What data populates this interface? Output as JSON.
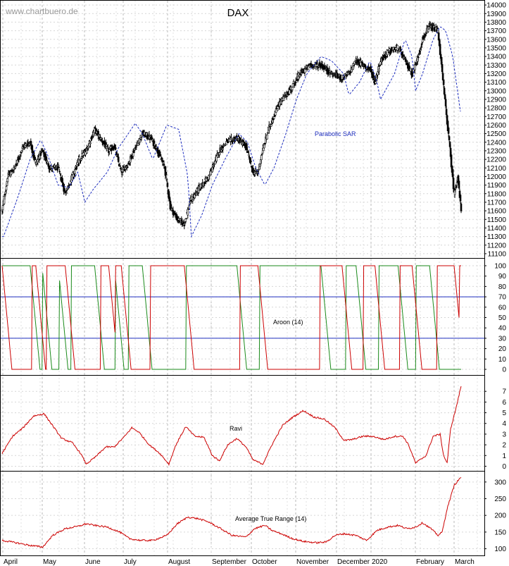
{
  "watermark": "www.chartbuero.de",
  "chart_data": [
    {
      "type": "candlestick",
      "title": "DAX",
      "y_ticks": [
        11100,
        11200,
        11300,
        11400,
        11500,
        11600,
        11700,
        11800,
        11900,
        12000,
        12100,
        12200,
        12300,
        12400,
        12500,
        12600,
        12700,
        12800,
        12900,
        13000,
        13100,
        13200,
        13300,
        13400,
        13500,
        13600,
        13700,
        13800,
        13900,
        14000
      ],
      "ylim": [
        11050,
        14050
      ],
      "x_months": [
        "April",
        "May",
        "June",
        "July",
        "August",
        "September",
        "October",
        "November",
        "December",
        "2020",
        "February",
        "March"
      ],
      "close_anchors": [
        [
          0,
          11600
        ],
        [
          8,
          12000
        ],
        [
          18,
          12100
        ],
        [
          30,
          12350
        ],
        [
          40,
          12400
        ],
        [
          48,
          12150
        ],
        [
          57,
          12300
        ],
        [
          68,
          12100
        ],
        [
          80,
          12100
        ],
        [
          90,
          11800
        ],
        [
          100,
          12000
        ],
        [
          110,
          12200
        ],
        [
          120,
          12300
        ],
        [
          132,
          12550
        ],
        [
          140,
          12450
        ],
        [
          152,
          12300
        ],
        [
          160,
          12350
        ],
        [
          170,
          12050
        ],
        [
          180,
          12150
        ],
        [
          188,
          12300
        ],
        [
          200,
          12500
        ],
        [
          212,
          12450
        ],
        [
          222,
          12300
        ],
        [
          232,
          12100
        ],
        [
          240,
          11650
        ],
        [
          250,
          11500
        ],
        [
          260,
          11450
        ],
        [
          268,
          11700
        ],
        [
          280,
          11850
        ],
        [
          295,
          12000
        ],
        [
          310,
          12300
        ],
        [
          320,
          12400
        ],
        [
          335,
          12450
        ],
        [
          348,
          12350
        ],
        [
          358,
          12050
        ],
        [
          365,
          12050
        ],
        [
          370,
          12250
        ],
        [
          380,
          12550
        ],
        [
          395,
          12850
        ],
        [
          410,
          13000
        ],
        [
          425,
          13200
        ],
        [
          440,
          13300
        ],
        [
          455,
          13300
        ],
        [
          470,
          13200
        ],
        [
          485,
          13150
        ],
        [
          495,
          13200
        ],
        [
          505,
          13350
        ],
        [
          515,
          13300
        ],
        [
          525,
          13250
        ],
        [
          532,
          13100
        ],
        [
          540,
          13350
        ],
        [
          550,
          13450
        ],
        [
          565,
          13500
        ],
        [
          575,
          13350
        ],
        [
          585,
          13200
        ],
        [
          592,
          13350
        ],
        [
          600,
          13600
        ],
        [
          610,
          13750
        ],
        [
          622,
          13700
        ],
        [
          628,
          13200
        ],
        [
          633,
          12800
        ],
        [
          638,
          12400
        ],
        [
          645,
          11800
        ],
        [
          650,
          12000
        ],
        [
          655,
          11600
        ]
      ],
      "psar_anchors": [
        [
          2,
          11300
        ],
        [
          20,
          11700
        ],
        [
          40,
          12200
        ],
        [
          55,
          12430
        ],
        [
          65,
          12250
        ],
        [
          80,
          11900
        ],
        [
          95,
          11870
        ],
        [
          108,
          12050
        ],
        [
          118,
          11700
        ],
        [
          130,
          11850
        ],
        [
          150,
          12050
        ],
        [
          165,
          12320
        ],
        [
          190,
          12620
        ],
        [
          200,
          12500
        ],
        [
          215,
          12200
        ],
        [
          235,
          12600
        ],
        [
          252,
          12550
        ],
        [
          265,
          12000
        ],
        [
          270,
          11300
        ],
        [
          285,
          11550
        ],
        [
          300,
          11900
        ],
        [
          318,
          12200
        ],
        [
          338,
          12500
        ],
        [
          350,
          12400
        ],
        [
          362,
          12100
        ],
        [
          375,
          11900
        ],
        [
          388,
          12100
        ],
        [
          405,
          12500
        ],
        [
          420,
          12900
        ],
        [
          435,
          13200
        ],
        [
          455,
          13400
        ],
        [
          470,
          13350
        ],
        [
          487,
          13200
        ],
        [
          495,
          12950
        ],
        [
          510,
          13100
        ],
        [
          525,
          13350
        ],
        [
          535,
          13100
        ],
        [
          540,
          12900
        ],
        [
          560,
          13200
        ],
        [
          575,
          13600
        ],
        [
          585,
          13400
        ],
        [
          590,
          13000
        ],
        [
          600,
          13200
        ],
        [
          615,
          13600
        ],
        [
          625,
          13750
        ],
        [
          633,
          13700
        ],
        [
          643,
          13400
        ],
        [
          655,
          12700
        ]
      ],
      "annotation": "Parabolic SAR",
      "series": [
        {
          "name": "Parabolic SAR",
          "color": "#1f2fbf"
        }
      ]
    },
    {
      "type": "line",
      "label": "Aroon (14)",
      "y_ticks": [
        0,
        10,
        20,
        30,
        40,
        50,
        60,
        70,
        80,
        90,
        100
      ],
      "ylim": [
        0,
        100
      ],
      "reference_lines": [
        30,
        70
      ],
      "up_series_color": "#1a8a1a",
      "down_series_color": "#cc0000"
    },
    {
      "type": "line",
      "label": "Ravi",
      "y_ticks": [
        0,
        1,
        2,
        3,
        4,
        5,
        6,
        7
      ],
      "ylim": [
        -0.3,
        8.2
      ],
      "color": "#cc0000",
      "values_anchors": [
        [
          0,
          1.2
        ],
        [
          15,
          2.8
        ],
        [
          30,
          3.6
        ],
        [
          45,
          4.7
        ],
        [
          60,
          4.9
        ],
        [
          72,
          3.8
        ],
        [
          85,
          2.6
        ],
        [
          100,
          2.2
        ],
        [
          112,
          1.2
        ],
        [
          120,
          0.2
        ],
        [
          132,
          0.8
        ],
        [
          148,
          1.8
        ],
        [
          160,
          1.8
        ],
        [
          175,
          2.8
        ],
        [
          185,
          3.6
        ],
        [
          195,
          3.2
        ],
        [
          210,
          2.0
        ],
        [
          225,
          1.2
        ],
        [
          238,
          0.2
        ],
        [
          248,
          2.0
        ],
        [
          262,
          3.7
        ],
        [
          275,
          2.8
        ],
        [
          288,
          2.7
        ],
        [
          300,
          1.0
        ],
        [
          310,
          0.5
        ],
        [
          322,
          2.0
        ],
        [
          335,
          2.6
        ],
        [
          348,
          1.8
        ],
        [
          358,
          0.6
        ],
        [
          372,
          0.2
        ],
        [
          385,
          2.0
        ],
        [
          400,
          3.8
        ],
        [
          415,
          4.6
        ],
        [
          430,
          5.2
        ],
        [
          445,
          4.6
        ],
        [
          460,
          4.4
        ],
        [
          475,
          3.6
        ],
        [
          488,
          2.4
        ],
        [
          500,
          2.5
        ],
        [
          515,
          2.8
        ],
        [
          528,
          2.8
        ],
        [
          545,
          2.5
        ],
        [
          560,
          2.8
        ],
        [
          572,
          2.8
        ],
        [
          580,
          2.0
        ],
        [
          590,
          0.3
        ],
        [
          605,
          1.0
        ],
        [
          615,
          2.8
        ],
        [
          625,
          3.0
        ],
        [
          630,
          1.0
        ],
        [
          635,
          0.3
        ],
        [
          640,
          3.5
        ],
        [
          648,
          5.5
        ],
        [
          655,
          7.5
        ]
      ]
    },
    {
      "type": "line",
      "label": "Average True Range (14)",
      "y_ticks": [
        100,
        150,
        200,
        250,
        300
      ],
      "ylim": [
        80,
        325
      ],
      "color": "#cc0000",
      "values_anchors": [
        [
          0,
          125
        ],
        [
          20,
          118
        ],
        [
          40,
          110
        ],
        [
          58,
          105
        ],
        [
          72,
          140
        ],
        [
          90,
          160
        ],
        [
          110,
          168
        ],
        [
          120,
          175
        ],
        [
          132,
          170
        ],
        [
          150,
          165
        ],
        [
          168,
          150
        ],
        [
          182,
          130
        ],
        [
          198,
          125
        ],
        [
          215,
          125
        ],
        [
          235,
          140
        ],
        [
          250,
          175
        ],
        [
          265,
          195
        ],
        [
          280,
          190
        ],
        [
          295,
          180
        ],
        [
          312,
          160
        ],
        [
          328,
          140
        ],
        [
          348,
          135
        ],
        [
          360,
          160
        ],
        [
          375,
          170
        ],
        [
          385,
          155
        ],
        [
          398,
          145
        ],
        [
          415,
          130
        ],
        [
          430,
          122
        ],
        [
          448,
          118
        ],
        [
          462,
          120
        ],
        [
          475,
          140
        ],
        [
          488,
          145
        ],
        [
          505,
          140
        ],
        [
          520,
          125
        ],
        [
          535,
          155
        ],
        [
          550,
          165
        ],
        [
          565,
          170
        ],
        [
          578,
          160
        ],
        [
          590,
          165
        ],
        [
          600,
          178
        ],
        [
          612,
          160
        ],
        [
          622,
          140
        ],
        [
          628,
          150
        ],
        [
          635,
          220
        ],
        [
          645,
          290
        ],
        [
          655,
          315
        ]
      ]
    }
  ]
}
